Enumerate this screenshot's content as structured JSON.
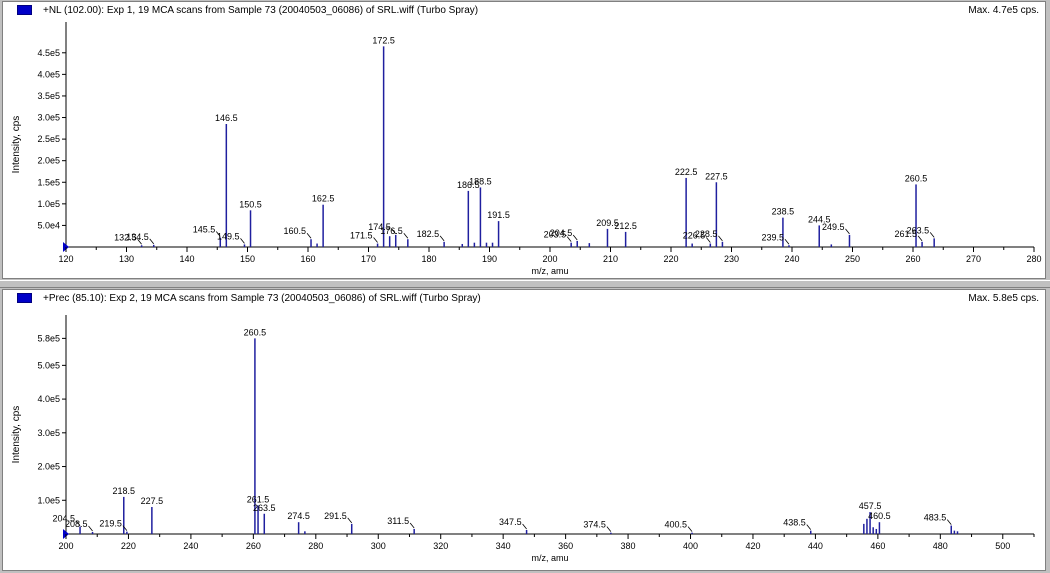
{
  "colors": {
    "peak": "#1f1f9f",
    "axis": "#000000",
    "marker": "#0000c8"
  },
  "chart_data": [
    {
      "type": "bar",
      "subtype": "mass-spectrum",
      "title": "+NL (102.00): Exp 1, 19 MCA scans from Sample 73 (20040503_06086) of SRL.wiff (Turbo Spray)",
      "max_label": "Max. 4.7e5 cps.",
      "xlabel": "m/z, amu",
      "ylabel": "Intensity, cps",
      "xlim": [
        120,
        280
      ],
      "ylim": [
        0,
        475000
      ],
      "x_ticks": [
        120,
        130,
        140,
        150,
        160,
        170,
        180,
        190,
        200,
        210,
        220,
        230,
        240,
        250,
        260,
        270,
        280
      ],
      "y_ticks": [
        {
          "value": 50000,
          "label": "5.0e4"
        },
        {
          "value": 100000,
          "label": "1.0e5"
        },
        {
          "value": 150000,
          "label": "1.5e5"
        },
        {
          "value": 200000,
          "label": "2.0e5"
        },
        {
          "value": 250000,
          "label": "2.5e5"
        },
        {
          "value": 300000,
          "label": "3.0e5"
        },
        {
          "value": 350000,
          "label": "3.5e5"
        },
        {
          "value": 400000,
          "label": "4.0e5"
        },
        {
          "value": 450000,
          "label": "4.5e5"
        }
      ],
      "peaks": [
        {
          "x": 132.5,
          "y": 4000,
          "label": "132.5"
        },
        {
          "x": 134.5,
          "y": 5000,
          "label": "134.5"
        },
        {
          "x": 145.5,
          "y": 22000,
          "label": "145.5"
        },
        {
          "x": 146.5,
          "y": 285000,
          "label": "146.5"
        },
        {
          "x": 149.5,
          "y": 6000,
          "label": "149.5"
        },
        {
          "x": 150.5,
          "y": 85000,
          "label": "150.5"
        },
        {
          "x": 160.5,
          "y": 18000,
          "label": "160.5"
        },
        {
          "x": 161.5,
          "y": 8000
        },
        {
          "x": 162.5,
          "y": 98000,
          "label": "162.5"
        },
        {
          "x": 171.5,
          "y": 8000,
          "label": "171.5"
        },
        {
          "x": 172.5,
          "y": 465000,
          "label": "172.5"
        },
        {
          "x": 173.5,
          "y": 25000
        },
        {
          "x": 174.5,
          "y": 28000,
          "label": "174.5"
        },
        {
          "x": 176.5,
          "y": 18000,
          "label": "176.5"
        },
        {
          "x": 182.5,
          "y": 12000,
          "label": "182.5"
        },
        {
          "x": 185.5,
          "y": 7000
        },
        {
          "x": 186.5,
          "y": 130000,
          "label": "186.5"
        },
        {
          "x": 187.5,
          "y": 10000
        },
        {
          "x": 188.5,
          "y": 138000,
          "label": "188.5"
        },
        {
          "x": 189.5,
          "y": 10000
        },
        {
          "x": 190.5,
          "y": 10000
        },
        {
          "x": 191.5,
          "y": 60000,
          "label": "191.5"
        },
        {
          "x": 203.5,
          "y": 10000,
          "label": "203.5"
        },
        {
          "x": 204.5,
          "y": 14000,
          "label": "204.5"
        },
        {
          "x": 206.5,
          "y": 9000
        },
        {
          "x": 209.5,
          "y": 42000,
          "label": "209.5"
        },
        {
          "x": 212.5,
          "y": 35000,
          "label": "212.5"
        },
        {
          "x": 222.5,
          "y": 160000,
          "label": "222.5"
        },
        {
          "x": 223.5,
          "y": 8000
        },
        {
          "x": 226.5,
          "y": 8000,
          "label": "226.5"
        },
        {
          "x": 227.5,
          "y": 150000,
          "label": "227.5"
        },
        {
          "x": 228.5,
          "y": 12000,
          "label": "228.5"
        },
        {
          "x": 238.5,
          "y": 68000,
          "label": "238.5"
        },
        {
          "x": 239.5,
          "y": 4000,
          "label": "239.5"
        },
        {
          "x": 244.5,
          "y": 50000,
          "label": "244.5"
        },
        {
          "x": 246.5,
          "y": 6000
        },
        {
          "x": 249.5,
          "y": 28000,
          "label": "249.5"
        },
        {
          "x": 260.5,
          "y": 145000,
          "label": "260.5"
        },
        {
          "x": 261.5,
          "y": 12000,
          "label": "261.5"
        },
        {
          "x": 263.5,
          "y": 20000,
          "label": "263.5"
        }
      ]
    },
    {
      "type": "bar",
      "subtype": "mass-spectrum",
      "title": "+Prec (85.10): Exp 2, 19 MCA scans from Sample 73 (20040503_06086) of SRL.wiff (Turbo Spray)",
      "max_label": "Max. 5.8e5 cps.",
      "xlabel": "m/z, amu",
      "ylabel": "Intensity, cps",
      "xlim": [
        200,
        510
      ],
      "ylim": [
        0,
        590000
      ],
      "x_ticks": [
        200,
        220,
        240,
        260,
        280,
        300,
        320,
        340,
        360,
        380,
        400,
        420,
        440,
        460,
        480,
        500
      ],
      "y_ticks": [
        {
          "value": 100000,
          "label": "1.0e5"
        },
        {
          "value": 200000,
          "label": "2.0e5"
        },
        {
          "value": 300000,
          "label": "3.0e5"
        },
        {
          "value": 400000,
          "label": "4.0e5"
        },
        {
          "value": 500000,
          "label": "5.0e5"
        },
        {
          "value": 580000,
          "label": "5.8e5"
        }
      ],
      "peaks": [
        {
          "x": 204.5,
          "y": 22000,
          "label": "204.5"
        },
        {
          "x": 208.5,
          "y": 6000,
          "label": "208.5"
        },
        {
          "x": 218.5,
          "y": 110000,
          "label": "218.5"
        },
        {
          "x": 219.5,
          "y": 7000,
          "label": "219.5"
        },
        {
          "x": 227.5,
          "y": 80000,
          "label": "227.5"
        },
        {
          "x": 260.5,
          "y": 580000,
          "label": "260.5"
        },
        {
          "x": 261.5,
          "y": 85000,
          "label": "261.5"
        },
        {
          "x": 263.5,
          "y": 60000,
          "label": "263.5"
        },
        {
          "x": 274.5,
          "y": 35000,
          "label": "274.5"
        },
        {
          "x": 276.5,
          "y": 8000
        },
        {
          "x": 291.5,
          "y": 30000,
          "label": "291.5"
        },
        {
          "x": 311.5,
          "y": 15000,
          "label": "311.5"
        },
        {
          "x": 347.5,
          "y": 12000,
          "label": "347.5"
        },
        {
          "x": 374.5,
          "y": 4000,
          "label": "374.5"
        },
        {
          "x": 400.5,
          "y": 4000,
          "label": "400.5"
        },
        {
          "x": 438.5,
          "y": 10000,
          "label": "438.5"
        },
        {
          "x": 455.5,
          "y": 30000
        },
        {
          "x": 456.5,
          "y": 45000
        },
        {
          "x": 457.5,
          "y": 65000,
          "label": "457.5"
        },
        {
          "x": 458.5,
          "y": 20000
        },
        {
          "x": 459.5,
          "y": 15000
        },
        {
          "x": 460.5,
          "y": 35000,
          "label": "460.5"
        },
        {
          "x": 483.5,
          "y": 25000,
          "label": "483.5"
        },
        {
          "x": 484.5,
          "y": 10000
        },
        {
          "x": 485.5,
          "y": 8000
        }
      ]
    }
  ]
}
